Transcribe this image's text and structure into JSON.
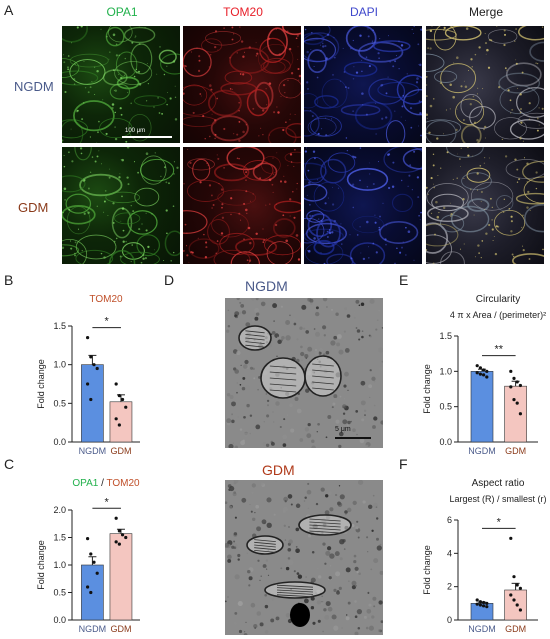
{
  "panel_labels": {
    "A": "A",
    "B": "B",
    "C": "C",
    "D": "D",
    "E": "E",
    "F": "F"
  },
  "panel_a": {
    "columns": [
      "OPA1",
      "TOM20",
      "DAPI",
      "Merge"
    ],
    "column_colors": [
      "#22b14c",
      "#e8202a",
      "#3f48cc",
      "#222222"
    ],
    "rows": [
      "NGDM",
      "GDM"
    ],
    "row_colors": [
      "#4a5a8a",
      "#8a3a1a"
    ],
    "scale_bar": "100 μm"
  },
  "panel_d": {
    "titles": [
      "NGDM",
      "GDM"
    ],
    "title_colors": [
      "#4a5a8a",
      "#b03a1a"
    ],
    "scale_bar": "5 μm"
  },
  "colors": {
    "ngdm_bar": "#5b8fe0",
    "gdm_bar": "#f4c6c0",
    "axis": "#222222"
  },
  "chart_data": [
    {
      "id": "B",
      "type": "bar",
      "title_parts": [
        {
          "text": "TOM20",
          "color": "#c0502a"
        }
      ],
      "title_line2": "",
      "ylabel": "Fold change",
      "categories": [
        "NGDM",
        "GDM"
      ],
      "category_colors": [
        "#4a5a8a",
        "#8a3a1a"
      ],
      "values": [
        1.0,
        0.52
      ],
      "errors": [
        0.12,
        0.09
      ],
      "points": [
        [
          1.35,
          1.1,
          1.0,
          0.95,
          0.75,
          0.55
        ],
        [
          0.75,
          0.6,
          0.55,
          0.45,
          0.3,
          0.22
        ]
      ],
      "ylim": [
        0,
        1.5
      ],
      "yticks": [
        "0.0",
        "0.5",
        "1.0",
        "1.5"
      ],
      "significance": "*"
    },
    {
      "id": "C",
      "type": "bar",
      "title_parts": [
        {
          "text": "OPA1",
          "color": "#22b14c"
        },
        {
          "text": " / ",
          "color": "#222222"
        },
        {
          "text": "TOM20",
          "color": "#c0502a"
        }
      ],
      "title_line2": "",
      "ylabel": "Fold change",
      "categories": [
        "NGDM",
        "GDM"
      ],
      "category_colors": [
        "#4a5a8a",
        "#8a3a1a"
      ],
      "values": [
        1.0,
        1.57
      ],
      "errors": [
        0.15,
        0.08
      ],
      "points": [
        [
          1.48,
          1.2,
          1.05,
          0.85,
          0.6,
          0.5
        ],
        [
          1.85,
          1.62,
          1.55,
          1.5,
          1.42,
          1.38
        ]
      ],
      "ylim": [
        0,
        2.0
      ],
      "yticks": [
        "0.0",
        "0.5",
        "1.0",
        "1.5",
        "2.0"
      ],
      "significance": "*"
    },
    {
      "id": "E",
      "type": "bar",
      "title_parts": [
        {
          "text": "Circularity",
          "color": "#222222"
        }
      ],
      "title_line2": "4 π x Area / (perimeter)²",
      "ylabel": "Fold change",
      "categories": [
        "NGDM",
        "GDM"
      ],
      "category_colors": [
        "#4a5a8a",
        "#8a3a1a"
      ],
      "values": [
        1.0,
        0.79
      ],
      "errors": [
        0.03,
        0.07
      ],
      "points": [
        [
          1.08,
          1.05,
          1.02,
          1.0,
          0.98,
          0.96,
          0.95,
          0.92
        ],
        [
          1.0,
          0.9,
          0.85,
          0.8,
          0.78,
          0.6,
          0.55,
          0.4
        ]
      ],
      "ylim": [
        0,
        1.5
      ],
      "yticks": [
        "0.0",
        "0.5",
        "1.0",
        "1.5"
      ],
      "significance": "**"
    },
    {
      "id": "F",
      "type": "bar",
      "title_parts": [
        {
          "text": "Aspect ratio",
          "color": "#222222"
        }
      ],
      "title_line2": "Largest (R) / smallest (r)",
      "ylabel": "Fold change",
      "categories": [
        "NGDM",
        "GDM"
      ],
      "category_colors": [
        "#4a5a8a",
        "#8a3a1a"
      ],
      "values": [
        1.0,
        1.8
      ],
      "errors": [
        0.07,
        0.4
      ],
      "points": [
        [
          1.2,
          1.1,
          1.05,
          1.0,
          0.95,
          0.9,
          0.85,
          0.8
        ],
        [
          4.9,
          2.6,
          2.1,
          1.9,
          1.5,
          1.2,
          0.9,
          0.6
        ]
      ],
      "ylim": [
        0,
        6
      ],
      "yticks": [
        "0",
        "2",
        "4",
        "6"
      ],
      "significance": "*"
    }
  ]
}
